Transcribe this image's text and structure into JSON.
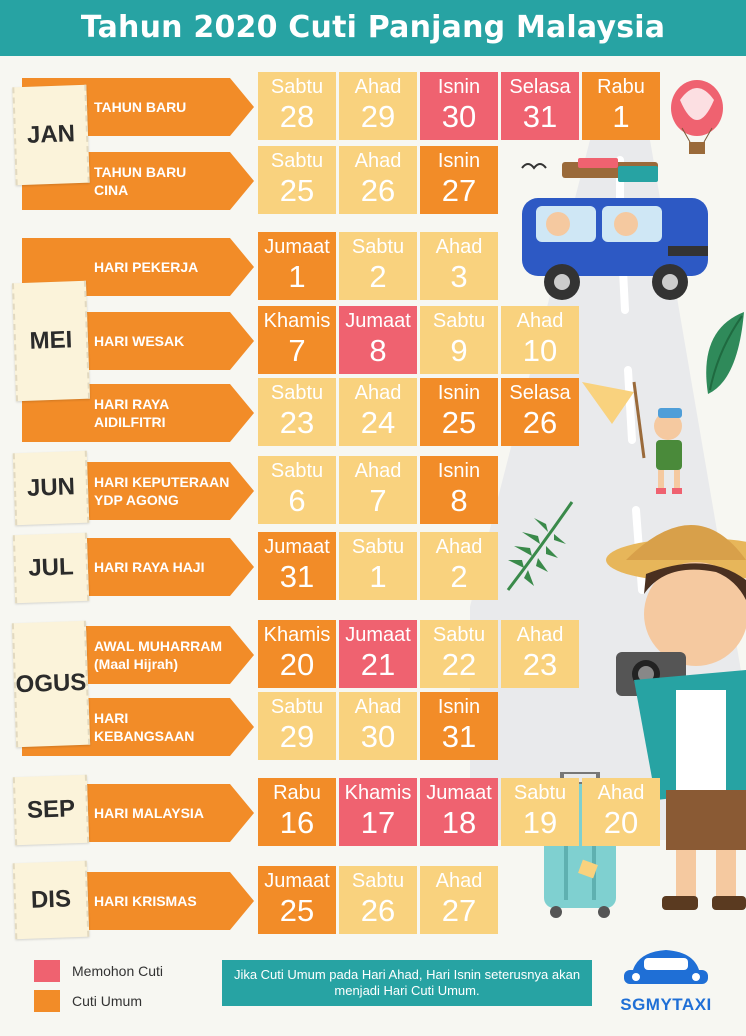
{
  "title": "Tahun 2020 Cuti Panjang Malaysia",
  "colors": {
    "teal": "#27a3a3",
    "orange": "#f28c28",
    "yellow": "#f9d27e",
    "red": "#ef6270"
  },
  "months": [
    {
      "name": "JAN",
      "holidays": [
        {
          "label": "TAHUN BARU",
          "days": [
            {
              "day": "Sabtu",
              "date": "28",
              "type": "yellow"
            },
            {
              "day": "Ahad",
              "date": "29",
              "type": "yellow"
            },
            {
              "day": "Isnin",
              "date": "30",
              "type": "red"
            },
            {
              "day": "Selasa",
              "date": "31",
              "type": "red"
            },
            {
              "day": "Rabu",
              "date": "1",
              "type": "orange"
            }
          ]
        },
        {
          "label": "TAHUN BARU\nCINA",
          "days": [
            {
              "day": "Sabtu",
              "date": "25",
              "type": "yellow"
            },
            {
              "day": "Ahad",
              "date": "26",
              "type": "yellow"
            },
            {
              "day": "Isnin",
              "date": "27",
              "type": "orange"
            }
          ]
        }
      ]
    },
    {
      "name": "MEI",
      "holidays": [
        {
          "label": "HARI PEKERJA",
          "days": [
            {
              "day": "Jumaat",
              "date": "1",
              "type": "orange"
            },
            {
              "day": "Sabtu",
              "date": "2",
              "type": "yellow"
            },
            {
              "day": "Ahad",
              "date": "3",
              "type": "yellow"
            }
          ]
        },
        {
          "label": "HARI WESAK",
          "days": [
            {
              "day": "Khamis",
              "date": "7",
              "type": "orange"
            },
            {
              "day": "Jumaat",
              "date": "8",
              "type": "red"
            },
            {
              "day": "Sabtu",
              "date": "9",
              "type": "yellow"
            },
            {
              "day": "Ahad",
              "date": "10",
              "type": "yellow"
            }
          ]
        },
        {
          "label": "HARI RAYA\nAIDILFITRI",
          "days": [
            {
              "day": "Sabtu",
              "date": "23",
              "type": "yellow"
            },
            {
              "day": "Ahad",
              "date": "24",
              "type": "yellow"
            },
            {
              "day": "Isnin",
              "date": "25",
              "type": "orange"
            },
            {
              "day": "Selasa",
              "date": "26",
              "type": "orange"
            }
          ]
        }
      ]
    },
    {
      "name": "JUN",
      "holidays": [
        {
          "label": "HARI KEPUTERAAN\nYDP AGONG",
          "days": [
            {
              "day": "Sabtu",
              "date": "6",
              "type": "yellow"
            },
            {
              "day": "Ahad",
              "date": "7",
              "type": "yellow"
            },
            {
              "day": "Isnin",
              "date": "8",
              "type": "orange"
            }
          ]
        }
      ]
    },
    {
      "name": "JUL",
      "holidays": [
        {
          "label": "HARI RAYA HAJI",
          "days": [
            {
              "day": "Jumaat",
              "date": "31",
              "type": "orange"
            },
            {
              "day": "Sabtu",
              "date": "1",
              "type": "yellow"
            },
            {
              "day": "Ahad",
              "date": "2",
              "type": "yellow"
            }
          ]
        }
      ]
    },
    {
      "name": "OGUS",
      "holidays": [
        {
          "label": "AWAL MUHARRAM\n(Maal Hijrah)",
          "days": [
            {
              "day": "Khamis",
              "date": "20",
              "type": "orange"
            },
            {
              "day": "Jumaat",
              "date": "21",
              "type": "red"
            },
            {
              "day": "Sabtu",
              "date": "22",
              "type": "yellow"
            },
            {
              "day": "Ahad",
              "date": "23",
              "type": "yellow"
            }
          ]
        },
        {
          "label": "HARI\nKEBANGSAAN",
          "days": [
            {
              "day": "Sabtu",
              "date": "29",
              "type": "yellow"
            },
            {
              "day": "Ahad",
              "date": "30",
              "type": "yellow"
            },
            {
              "day": "Isnin",
              "date": "31",
              "type": "orange"
            }
          ]
        }
      ]
    },
    {
      "name": "SEP",
      "holidays": [
        {
          "label": "HARI MALAYSIA",
          "days": [
            {
              "day": "Rabu",
              "date": "16",
              "type": "orange"
            },
            {
              "day": "Khamis",
              "date": "17",
              "type": "red"
            },
            {
              "day": "Jumaat",
              "date": "18",
              "type": "red"
            },
            {
              "day": "Sabtu",
              "date": "19",
              "type": "yellow"
            },
            {
              "day": "Ahad",
              "date": "20",
              "type": "yellow"
            }
          ]
        }
      ]
    },
    {
      "name": "DIS",
      "holidays": [
        {
          "label": "HARI KRISMAS",
          "days": [
            {
              "day": "Jumaat",
              "date": "25",
              "type": "orange"
            },
            {
              "day": "Sabtu",
              "date": "26",
              "type": "yellow"
            },
            {
              "day": "Ahad",
              "date": "27",
              "type": "yellow"
            }
          ]
        }
      ]
    }
  ],
  "legend": [
    {
      "label": "Memohon Cuti",
      "color": "#ef6270"
    },
    {
      "label": "Cuti Umum",
      "color": "#f28c28"
    }
  ],
  "note": "Jika Cuti Umum pada Hari Ahad, Hari Isnin seterusnya akan menjadi Hari Cuti Umum.",
  "brand": "SGMYTAXI"
}
